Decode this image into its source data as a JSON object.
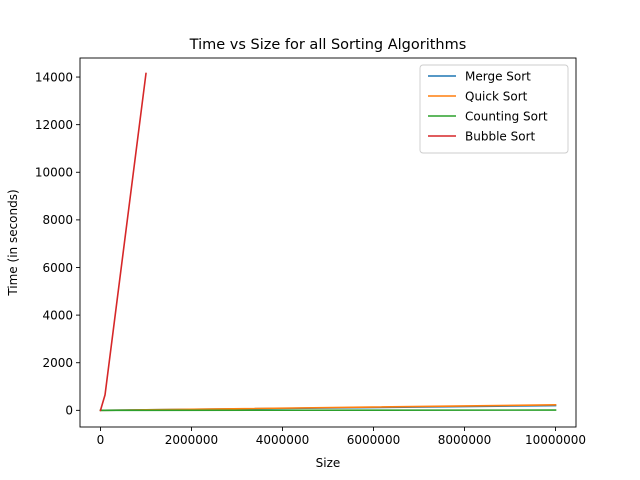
{
  "chart_data": {
    "type": "line",
    "title": "Time vs Size for all Sorting Algorithms",
    "xlabel": "Size",
    "ylabel": "Time (in seconds)",
    "xlim": [
      -450000,
      10450000
    ],
    "ylim": [
      -700,
      14800
    ],
    "xticks": [
      0,
      2000000,
      4000000,
      6000000,
      8000000,
      10000000
    ],
    "xtick_labels": [
      "0",
      "2000000",
      "4000000",
      "6000000",
      "8000000",
      "10000000"
    ],
    "yticks": [
      0,
      2000,
      4000,
      6000,
      8000,
      10000,
      12000,
      14000
    ],
    "ytick_labels": [
      "0",
      "2000",
      "4000",
      "6000",
      "8000",
      "10000",
      "12000",
      "14000"
    ],
    "grid": false,
    "legend_position": "top-right",
    "series": [
      {
        "name": "Merge Sort",
        "color": "#1f77b4",
        "x": [
          0,
          100000,
          1000000,
          10000000
        ],
        "y": [
          0,
          2,
          20,
          200
        ]
      },
      {
        "name": "Quick Sort",
        "color": "#ff7f0e",
        "x": [
          0,
          100000,
          1000000,
          10000000
        ],
        "y": [
          0,
          2,
          22,
          230
        ]
      },
      {
        "name": "Counting Sort",
        "color": "#2ca02c",
        "x": [
          0,
          100000,
          1000000,
          10000000
        ],
        "y": [
          0,
          0.1,
          1,
          10
        ]
      },
      {
        "name": "Bubble Sort",
        "color": "#d62728",
        "x": [
          0,
          100000,
          1000000
        ],
        "y": [
          0,
          650,
          14150
        ]
      }
    ]
  }
}
